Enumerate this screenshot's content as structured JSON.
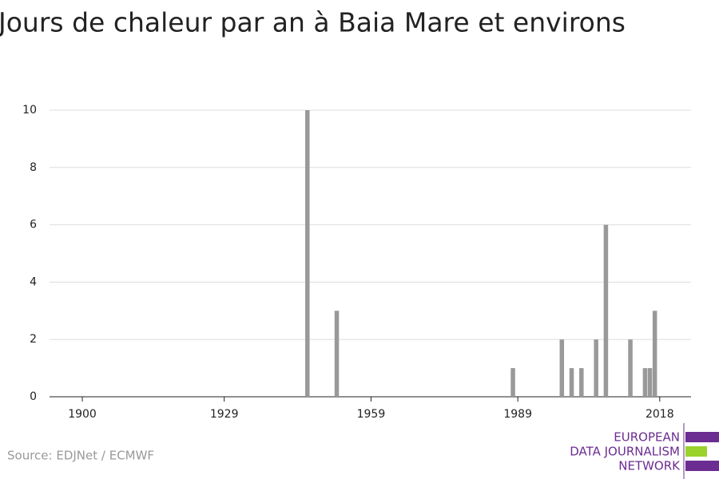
{
  "chart_data": {
    "type": "bar",
    "title": "Jours de chaleur par an à Baia Mare et environs",
    "x": [
      1946,
      1952,
      1988,
      1998,
      2000,
      2002,
      2005,
      2007,
      2012,
      2015,
      2016,
      2017
    ],
    "values": [
      10,
      3,
      1,
      2,
      1,
      1,
      2,
      6,
      2,
      1,
      1,
      3
    ],
    "color": "#999999",
    "xlim": [
      1893.3,
      2024.4
    ],
    "xticks": [
      1900,
      1929,
      1959,
      1989,
      2018
    ],
    "ylim": [
      0,
      10
    ],
    "yticks": [
      0,
      2,
      4,
      6,
      8,
      10
    ],
    "grid": true
  },
  "source": "Source: EDJNet / ECMWF",
  "logo": {
    "lines": [
      "EUROPEAN",
      "DATA JOURNALISM",
      "NETWORK"
    ]
  }
}
